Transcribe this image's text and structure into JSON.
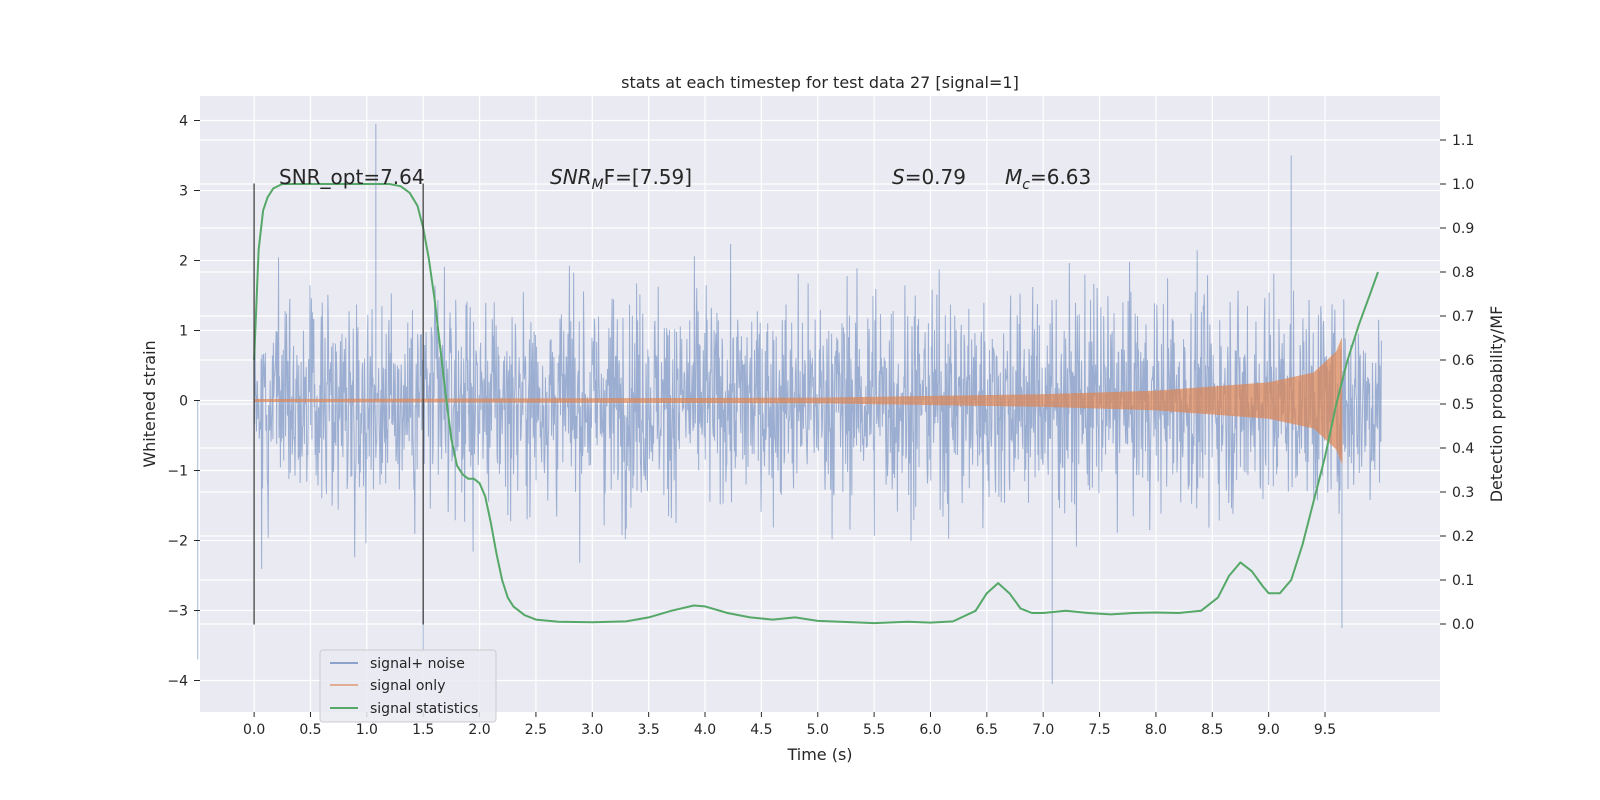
{
  "chart_data": {
    "type": "line",
    "title": "stats at each timestep for test data 27 [signal=1]",
    "xlabel": "Time (s)",
    "ylabel_left": "Whitened strain",
    "ylabel_right": "Detection probability/MF",
    "xlim": [
      -0.48,
      10.52
    ],
    "ylim_left": [
      -4.45,
      4.35
    ],
    "ylim_right": [
      -0.2,
      1.2
    ],
    "x_ticks": [
      "0.0",
      "0.5",
      "1.0",
      "1.5",
      "2.0",
      "2.5",
      "3.0",
      "3.5",
      "4.0",
      "4.5",
      "5.0",
      "5.5",
      "6.0",
      "6.5",
      "7.0",
      "7.5",
      "8.0",
      "8.5",
      "9.0",
      "9.5"
    ],
    "x_tick_values": [
      0.0,
      0.5,
      1.0,
      1.5,
      2.0,
      2.5,
      3.0,
      3.5,
      4.0,
      4.5,
      5.0,
      5.5,
      6.0,
      6.5,
      7.0,
      7.5,
      8.0,
      8.5,
      9.0,
      9.5
    ],
    "y_ticks_left": [
      "−4",
      "−3",
      "−2",
      "−1",
      "0",
      "1",
      "2",
      "3",
      "4"
    ],
    "y_tick_values_left": [
      -4,
      -3,
      -2,
      -1,
      0,
      1,
      2,
      3,
      4
    ],
    "y_ticks_right": [
      "0.0",
      "0.1",
      "0.2",
      "0.3",
      "0.4",
      "0.5",
      "0.6",
      "0.7",
      "0.8",
      "0.9",
      "1.0",
      "1.1"
    ],
    "y_tick_values_right": [
      0.0,
      0.1,
      0.2,
      0.3,
      0.4,
      0.5,
      0.6,
      0.7,
      0.8,
      0.9,
      1.0,
      1.1
    ],
    "grid": true,
    "legend_position": "lower-left",
    "series": [
      {
        "name": "signal+ noise",
        "color": "#4c72b0",
        "axis": "left",
        "kind": "noisy-strain",
        "x_range": [
          0.0,
          10.0
        ],
        "typical_envelope": 1.8,
        "peak_values": [
          [
            1.08,
            3.95
          ],
          [
            -0.5,
            -3.7
          ],
          [
            7.08,
            -4.05
          ],
          [
            9.65,
            -3.25
          ],
          [
            9.2,
            3.5
          ],
          [
            1.5,
            -3.6
          ]
        ]
      },
      {
        "name": "signal only",
        "color": "#dd8452",
        "axis": "left",
        "kind": "chirp",
        "x_range": [
          0.0,
          9.65
        ],
        "amplitude_points": [
          [
            0.0,
            0.02
          ],
          [
            5.0,
            0.04
          ],
          [
            7.0,
            0.09
          ],
          [
            8.0,
            0.14
          ],
          [
            9.0,
            0.26
          ],
          [
            9.4,
            0.4
          ],
          [
            9.6,
            0.7
          ],
          [
            9.65,
            0.9
          ]
        ]
      },
      {
        "name": "signal statistics",
        "color": "#55a868",
        "axis": "right",
        "kind": "line",
        "x": [
          0.0,
          0.04,
          0.08,
          0.12,
          0.17,
          0.25,
          0.4,
          0.6,
          0.8,
          1.0,
          1.2,
          1.3,
          1.38,
          1.45,
          1.5,
          1.55,
          1.6,
          1.65,
          1.7,
          1.75,
          1.8,
          1.85,
          1.9,
          1.95,
          2.0,
          2.05,
          2.1,
          2.15,
          2.2,
          2.25,
          2.3,
          2.4,
          2.5,
          2.7,
          3.0,
          3.3,
          3.5,
          3.7,
          3.9,
          4.0,
          4.2,
          4.4,
          4.6,
          4.8,
          5.0,
          5.2,
          5.5,
          5.8,
          6.0,
          6.2,
          6.4,
          6.5,
          6.6,
          6.7,
          6.8,
          6.9,
          7.0,
          7.2,
          7.4,
          7.6,
          7.8,
          8.0,
          8.2,
          8.4,
          8.55,
          8.65,
          8.75,
          8.85,
          8.95,
          9.0,
          9.1,
          9.2,
          9.3,
          9.4,
          9.5,
          9.6,
          9.7,
          9.8,
          9.9,
          9.97
        ],
        "values": [
          0.6,
          0.85,
          0.94,
          0.97,
          0.99,
          1.0,
          1.0,
          1.0,
          1.0,
          1.0,
          1.0,
          0.995,
          0.98,
          0.95,
          0.9,
          0.83,
          0.74,
          0.63,
          0.52,
          0.42,
          0.36,
          0.34,
          0.33,
          0.33,
          0.32,
          0.29,
          0.23,
          0.16,
          0.1,
          0.06,
          0.04,
          0.02,
          0.01,
          0.005,
          0.004,
          0.006,
          0.015,
          0.03,
          0.042,
          0.04,
          0.025,
          0.015,
          0.01,
          0.015,
          0.007,
          0.005,
          0.002,
          0.005,
          0.003,
          0.006,
          0.03,
          0.07,
          0.093,
          0.07,
          0.035,
          0.025,
          0.025,
          0.03,
          0.025,
          0.022,
          0.025,
          0.026,
          0.025,
          0.03,
          0.06,
          0.11,
          0.14,
          0.12,
          0.085,
          0.07,
          0.07,
          0.1,
          0.18,
          0.28,
          0.38,
          0.5,
          0.6,
          0.68,
          0.75,
          0.8
        ]
      }
    ],
    "vertical_lines": [
      0.0,
      1.5
    ],
    "annotations": {
      "snr_opt": "SNR_opt=7.64",
      "snr_mf_base": "SNR",
      "snr_mf_sub": "M",
      "snr_mf_rest": "F=[7.59]",
      "s_var": "S",
      "s_value": "=0.79",
      "mc_var": "M",
      "mc_sub": "c",
      "mc_value": "=6.63"
    }
  }
}
